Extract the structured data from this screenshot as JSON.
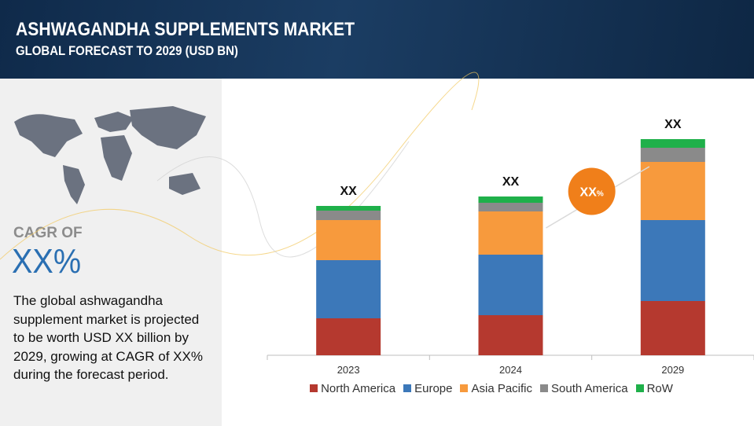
{
  "header": {
    "title": "ASHWAGANDHA SUPPLEMENTS MARKET",
    "subtitle": "GLOBAL FORECAST TO 2029 (USD BN)"
  },
  "sidebar": {
    "cagr_label": "CAGR OF",
    "cagr_value": "XX%",
    "description": "The global ashwagandha supplement market is projected to be worth USD XX billion by 2029, growing at CAGR of XX% during the forecast period."
  },
  "chart_data": {
    "type": "stacked_bar",
    "categories": [
      "2023",
      "2024",
      "2029"
    ],
    "series": [
      {
        "name": "North America",
        "color": "#b5392f",
        "values": [
          47,
          51,
          69
        ]
      },
      {
        "name": "Europe",
        "color": "#3c78b9",
        "values": [
          74,
          77,
          103
        ]
      },
      {
        "name": "Asia Pacific",
        "color": "#f79a3d",
        "values": [
          51,
          55,
          74
        ]
      },
      {
        "name": "South America",
        "color": "#8a8a8a",
        "values": [
          12,
          11,
          18
        ]
      },
      {
        "name": "RoW",
        "color": "#1fb04a",
        "values": [
          6,
          8,
          11
        ]
      }
    ],
    "total_labels": [
      "XX",
      "XX",
      "XX"
    ],
    "growth_bubble": {
      "value": "XX",
      "unit": "%"
    },
    "legend": "bottom"
  }
}
